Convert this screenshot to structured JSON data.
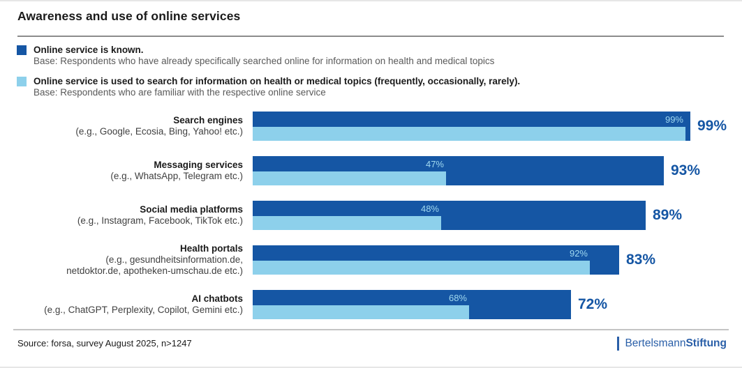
{
  "title": "Awareness and use of online services",
  "legend": [
    {
      "label": "Online service is known.",
      "base": "Base: Respondents who have already specifically searched online for information on health and medical topics",
      "color": "#1556a4"
    },
    {
      "label": "Online service is used to search for information on health or medical topics (frequently, occasionally, rarely).",
      "base": "Base: Respondents who are familiar with the respective online service",
      "color": "#8dd0eb"
    }
  ],
  "chart_data": {
    "type": "bar",
    "orientation": "horizontal",
    "title": "Awareness and use of online services",
    "xlim": [
      0,
      100
    ],
    "unit": "%",
    "grid": false,
    "legend_position": "top-left",
    "categories": [
      {
        "name": "Search engines",
        "examples": [
          "(e.g., Google, Ecosia, Bing, Yahoo! etc.)"
        ]
      },
      {
        "name": "Messaging services",
        "examples": [
          "(e.g., WhatsApp, Telegram etc.)"
        ]
      },
      {
        "name": "Social media platforms",
        "examples": [
          "(e.g., Instagram, Facebook, TikTok etc.)"
        ]
      },
      {
        "name": "Health portals",
        "examples": [
          "(e.g., gesundheitsinformation.de,",
          "netdoktor.de, apotheken-umschau.de etc.)"
        ]
      },
      {
        "name": "AI chatbots",
        "examples": [
          "(e.g., ChatGPT, Perplexity, Copilot, Gemini etc.)"
        ]
      }
    ],
    "series": [
      {
        "name": "Online service is known",
        "color": "#1556a4",
        "values": [
          99,
          93,
          89,
          83,
          72
        ]
      },
      {
        "name": "Online service is used to search for information on health or medical topics",
        "color": "#8dd0eb",
        "values": [
          99,
          47,
          48,
          92,
          68
        ]
      }
    ],
    "render_note": "used-series bar length is drawn as its share of the known-series bar (base: respondents familiar with the service)"
  },
  "source": "Source: forsa, survey August 2025, n>1247",
  "logo": {
    "part1": "Bertelsmann",
    "part2": "Stiftung"
  }
}
